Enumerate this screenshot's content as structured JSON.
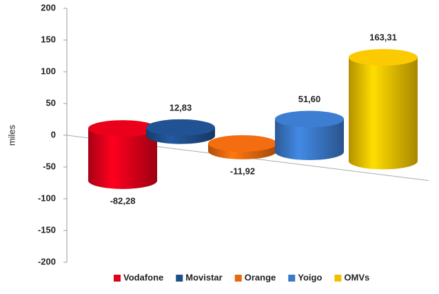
{
  "chart_data": {
    "type": "cylinder",
    "y_label": "miles",
    "categories": [
      "Vodafone",
      "Movistar",
      "Orange",
      "Yoigo",
      "OMVs"
    ],
    "values": [
      -82.28,
      12.83,
      -11.92,
      51.6,
      163.31
    ],
    "value_labels": [
      "-82,28",
      "12,83",
      "-11,92",
      "51,60",
      "163,31"
    ],
    "colors": [
      "#e0001a",
      "#1f4e8c",
      "#e8680f",
      "#3a78c8",
      "#f0c000"
    ],
    "ylim": [
      -200,
      200
    ],
    "yticks": [
      -200,
      -150,
      -100,
      -50,
      0,
      50,
      100,
      150,
      200
    ],
    "legend": "bottom"
  }
}
